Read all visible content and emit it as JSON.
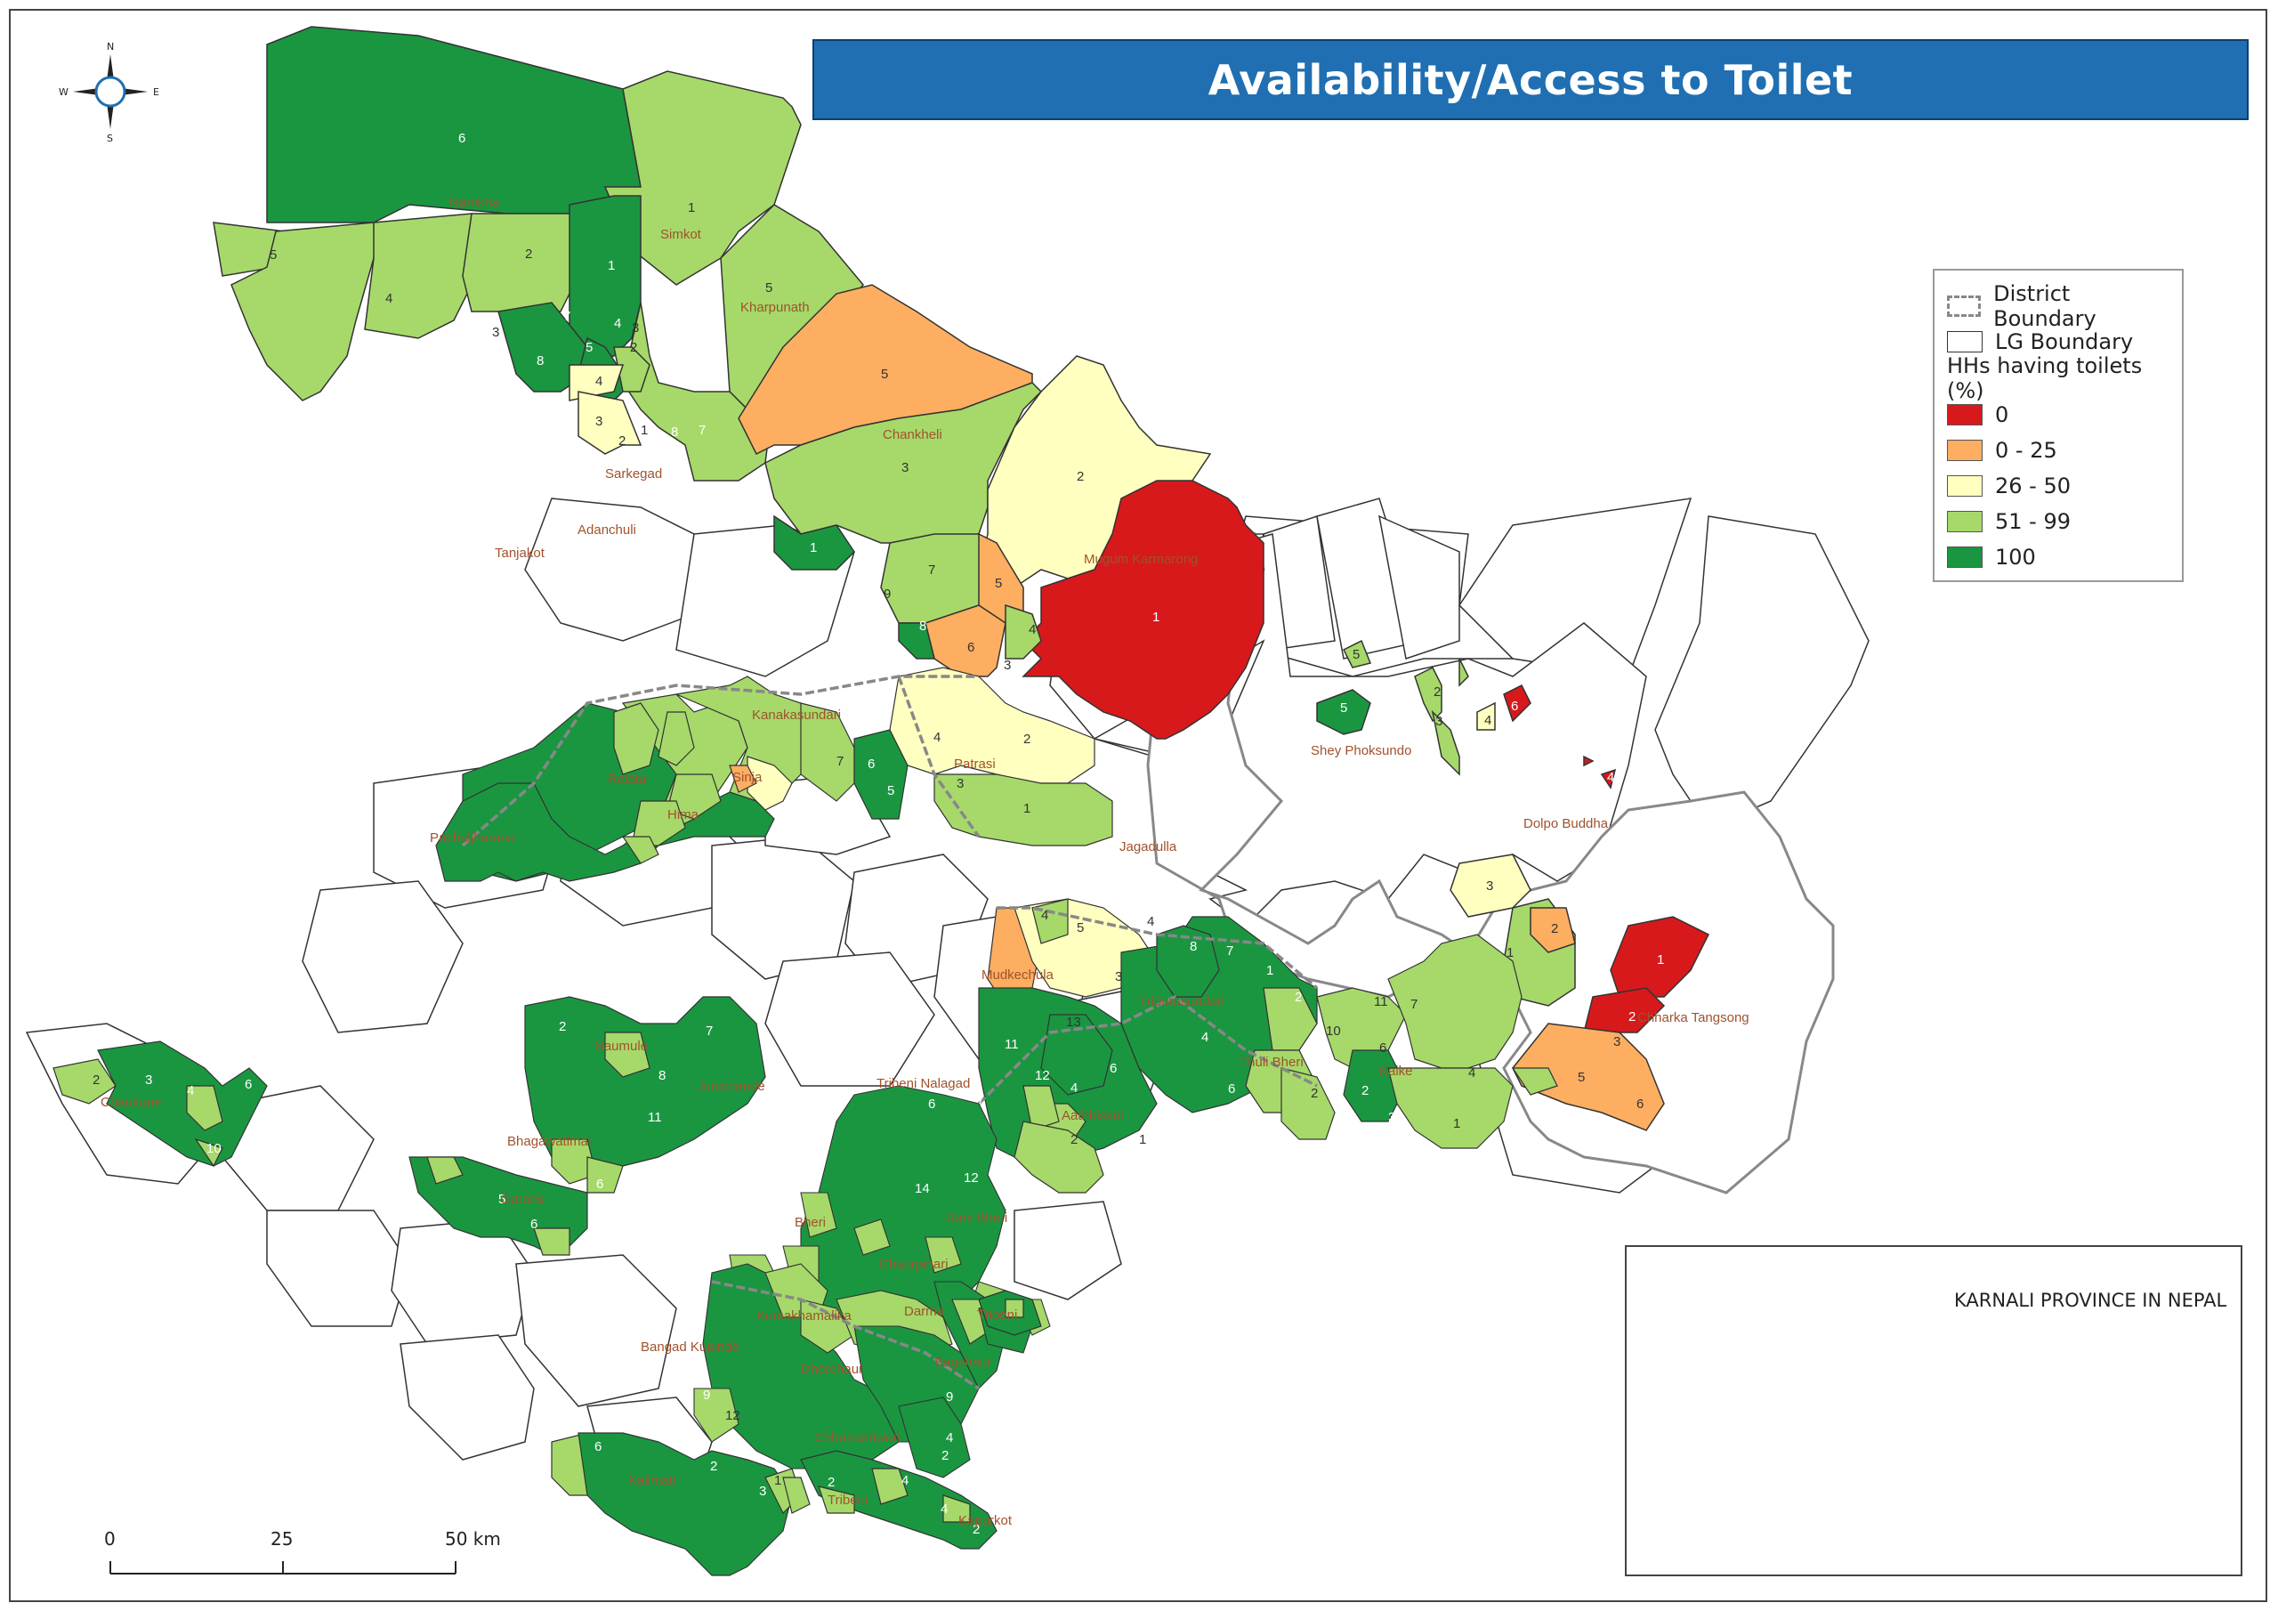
{
  "title": "Availability/Access to Toilet",
  "compass": {
    "n": "N",
    "s": "S",
    "e": "E",
    "w": "W",
    "icon": "compass-rose-icon"
  },
  "legend": {
    "district_boundary": "District Boundary",
    "lg_boundary": "LG Boundary",
    "heading": "HHs having toilets (%)",
    "classes": [
      {
        "label": "0",
        "color": "#d7191c"
      },
      {
        "label": "0 - 25",
        "color": "#fdae61"
      },
      {
        "label": "26 - 50",
        "color": "#ffffc0"
      },
      {
        "label": "51 - 99",
        "color": "#a6d96a"
      },
      {
        "label": "100",
        "color": "#1a9641"
      }
    ]
  },
  "inset": {
    "label": "KARNALI PROVINCE IN NEPAL",
    "highlight_color": "#e0453c"
  },
  "scale_bar": {
    "ticks": [
      "0",
      "25",
      "50 km"
    ]
  },
  "place_labels": [
    "Namkha",
    "Simkot",
    "Kharpunath",
    "Chankheli",
    "Sarkegad",
    "Adanchuli",
    "Tanjakot",
    "Mugum Karmarong",
    "Shey Phoksundo",
    "Dolpo Buddha",
    "Kanakasundari",
    "Ralata",
    "Sinja",
    "Hima",
    "Patrasi",
    "Pachaljharana",
    "Jagadulla",
    "Mudkechula",
    "Tripurasundari",
    "Thuli Bheri",
    "Kaike",
    "Chharka Tangsong",
    "Naumule",
    "Junichande",
    "Chaukune",
    "Bhagawatimai",
    "Gurans",
    "Tribeni Nalagad",
    "Aathbiskot",
    "Bheri",
    "Sani Bheri",
    "Chaurjahari",
    "Kumakhamalika",
    "Tribeni",
    "Darma",
    "Bangad Kupinde",
    "Dhorchaur",
    "Bagchaur",
    "Chhatreshwori",
    "Kalimati",
    "Tribeni",
    "Kapurkot"
  ],
  "map_colors": {
    "c0": "#d7191c",
    "c25": "#fdae61",
    "c50": "#ffffc0",
    "c99": "#a6d96a",
    "c100": "#1a9641",
    "empty": "#ffffff",
    "district_line": "#888888",
    "lg_line": "#333333"
  }
}
